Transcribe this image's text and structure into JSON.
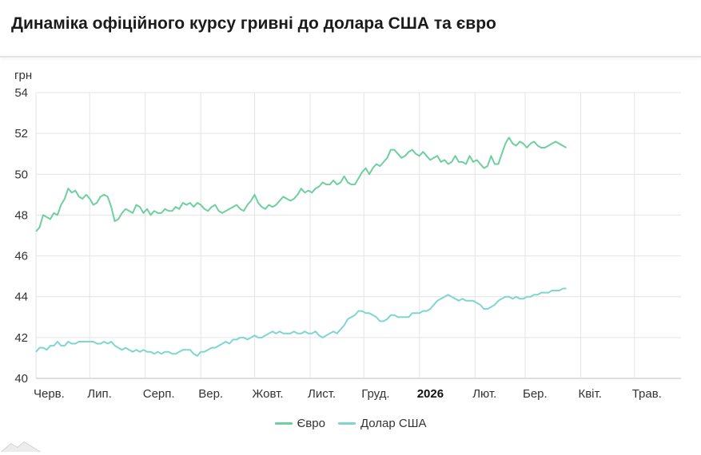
{
  "title": "Динаміка офіційного курсу гривні до долара США та євро",
  "chart_data": {
    "type": "line",
    "ylabel": "грн",
    "ylim": [
      40,
      54
    ],
    "yticks": [
      40,
      42,
      44,
      46,
      48,
      50,
      52,
      54
    ],
    "xlim": [
      0,
      360
    ],
    "xticks": [
      {
        "label": "Черв.",
        "x": 0,
        "bold": false
      },
      {
        "label": "Лип.",
        "x": 30,
        "bold": false
      },
      {
        "label": "Серп.",
        "x": 61,
        "bold": false
      },
      {
        "label": "Вер.",
        "x": 92,
        "bold": false
      },
      {
        "label": "Жовт.",
        "x": 122,
        "bold": false
      },
      {
        "label": "Лист.",
        "x": 153,
        "bold": false
      },
      {
        "label": "Груд.",
        "x": 183,
        "bold": false
      },
      {
        "label": "2026",
        "x": 214,
        "bold": true
      },
      {
        "label": "Лют.",
        "x": 245,
        "bold": false
      },
      {
        "label": "Бер.",
        "x": 273,
        "bold": false
      },
      {
        "label": "Квіт.",
        "x": 304,
        "bold": false
      },
      {
        "label": "Трав.",
        "x": 334,
        "bold": false
      }
    ],
    "grid": true,
    "legend_position": "bottom",
    "series": [
      {
        "name": "Євро",
        "color": "#6fcf9f",
        "points": [
          [
            0,
            47.2
          ],
          [
            2,
            47.4
          ],
          [
            4,
            48.0
          ],
          [
            6,
            47.9
          ],
          [
            8,
            47.8
          ],
          [
            10,
            48.1
          ],
          [
            12,
            48.0
          ],
          [
            14,
            48.5
          ],
          [
            16,
            48.8
          ],
          [
            18,
            49.3
          ],
          [
            20,
            49.1
          ],
          [
            22,
            49.2
          ],
          [
            24,
            48.9
          ],
          [
            26,
            48.8
          ],
          [
            28,
            49.0
          ],
          [
            30,
            48.8
          ],
          [
            32,
            48.5
          ],
          [
            34,
            48.6
          ],
          [
            36,
            48.9
          ],
          [
            38,
            49.0
          ],
          [
            40,
            48.9
          ],
          [
            42,
            48.4
          ],
          [
            44,
            47.7
          ],
          [
            46,
            47.8
          ],
          [
            48,
            48.1
          ],
          [
            50,
            48.3
          ],
          [
            52,
            48.2
          ],
          [
            54,
            48.1
          ],
          [
            56,
            48.5
          ],
          [
            58,
            48.4
          ],
          [
            60,
            48.1
          ],
          [
            62,
            48.3
          ],
          [
            64,
            48.0
          ],
          [
            66,
            48.2
          ],
          [
            68,
            48.1
          ],
          [
            70,
            48.1
          ],
          [
            72,
            48.3
          ],
          [
            74,
            48.2
          ],
          [
            76,
            48.2
          ],
          [
            78,
            48.4
          ],
          [
            80,
            48.3
          ],
          [
            82,
            48.6
          ],
          [
            84,
            48.5
          ],
          [
            86,
            48.6
          ],
          [
            88,
            48.4
          ],
          [
            90,
            48.6
          ],
          [
            92,
            48.5
          ],
          [
            94,
            48.3
          ],
          [
            96,
            48.2
          ],
          [
            98,
            48.4
          ],
          [
            100,
            48.5
          ],
          [
            102,
            48.2
          ],
          [
            104,
            48.1
          ],
          [
            106,
            48.2
          ],
          [
            108,
            48.3
          ],
          [
            110,
            48.4
          ],
          [
            112,
            48.5
          ],
          [
            114,
            48.3
          ],
          [
            116,
            48.2
          ],
          [
            118,
            48.5
          ],
          [
            120,
            48.7
          ],
          [
            122,
            49.0
          ],
          [
            124,
            48.6
          ],
          [
            126,
            48.4
          ],
          [
            128,
            48.3
          ],
          [
            130,
            48.5
          ],
          [
            132,
            48.4
          ],
          [
            134,
            48.5
          ],
          [
            136,
            48.7
          ],
          [
            138,
            48.9
          ],
          [
            140,
            48.8
          ],
          [
            142,
            48.7
          ],
          [
            144,
            48.8
          ],
          [
            146,
            49.0
          ],
          [
            148,
            49.3
          ],
          [
            150,
            49.1
          ],
          [
            152,
            49.2
          ],
          [
            154,
            49.1
          ],
          [
            156,
            49.3
          ],
          [
            158,
            49.4
          ],
          [
            160,
            49.6
          ],
          [
            162,
            49.5
          ],
          [
            164,
            49.5
          ],
          [
            166,
            49.7
          ],
          [
            168,
            49.5
          ],
          [
            170,
            49.6
          ],
          [
            172,
            49.9
          ],
          [
            174,
            49.6
          ],
          [
            176,
            49.5
          ],
          [
            178,
            49.5
          ],
          [
            180,
            49.8
          ],
          [
            182,
            50.1
          ],
          [
            184,
            50.3
          ],
          [
            186,
            50.0
          ],
          [
            188,
            50.3
          ],
          [
            190,
            50.5
          ],
          [
            192,
            50.4
          ],
          [
            194,
            50.6
          ],
          [
            196,
            50.8
          ],
          [
            198,
            51.2
          ],
          [
            200,
            51.2
          ],
          [
            202,
            51.0
          ],
          [
            204,
            50.8
          ],
          [
            206,
            50.9
          ],
          [
            208,
            51.1
          ],
          [
            210,
            51.2
          ],
          [
            212,
            51.0
          ],
          [
            214,
            50.9
          ],
          [
            216,
            51.1
          ],
          [
            218,
            50.9
          ],
          [
            220,
            50.7
          ],
          [
            222,
            50.8
          ],
          [
            224,
            50.9
          ],
          [
            226,
            50.6
          ],
          [
            228,
            50.7
          ],
          [
            230,
            50.5
          ],
          [
            232,
            50.6
          ],
          [
            234,
            50.9
          ],
          [
            236,
            50.6
          ],
          [
            238,
            50.6
          ],
          [
            240,
            50.5
          ],
          [
            242,
            50.9
          ],
          [
            244,
            50.6
          ],
          [
            246,
            50.7
          ],
          [
            248,
            50.5
          ],
          [
            250,
            50.3
          ],
          [
            252,
            50.4
          ],
          [
            254,
            50.9
          ],
          [
            256,
            50.5
          ],
          [
            258,
            50.5
          ],
          [
            260,
            51.0
          ],
          [
            262,
            51.5
          ],
          [
            264,
            51.8
          ],
          [
            266,
            51.5
          ],
          [
            268,
            51.4
          ],
          [
            270,
            51.6
          ],
          [
            272,
            51.5
          ],
          [
            274,
            51.3
          ],
          [
            276,
            51.5
          ],
          [
            278,
            51.6
          ],
          [
            280,
            51.4
          ],
          [
            282,
            51.3
          ],
          [
            284,
            51.3
          ],
          [
            286,
            51.4
          ],
          [
            288,
            51.5
          ],
          [
            290,
            51.6
          ],
          [
            292,
            51.5
          ],
          [
            294,
            51.4
          ],
          [
            296,
            51.3
          ]
        ]
      },
      {
        "name": "Долар США",
        "color": "#7fd6cf",
        "points": [
          [
            0,
            41.3
          ],
          [
            2,
            41.5
          ],
          [
            4,
            41.5
          ],
          [
            6,
            41.4
          ],
          [
            8,
            41.6
          ],
          [
            10,
            41.6
          ],
          [
            12,
            41.8
          ],
          [
            14,
            41.6
          ],
          [
            16,
            41.6
          ],
          [
            18,
            41.8
          ],
          [
            20,
            41.7
          ],
          [
            22,
            41.7
          ],
          [
            24,
            41.8
          ],
          [
            26,
            41.8
          ],
          [
            28,
            41.8
          ],
          [
            30,
            41.8
          ],
          [
            32,
            41.8
          ],
          [
            34,
            41.7
          ],
          [
            36,
            41.7
          ],
          [
            38,
            41.8
          ],
          [
            40,
            41.7
          ],
          [
            42,
            41.8
          ],
          [
            44,
            41.6
          ],
          [
            46,
            41.5
          ],
          [
            48,
            41.4
          ],
          [
            50,
            41.5
          ],
          [
            52,
            41.4
          ],
          [
            54,
            41.3
          ],
          [
            56,
            41.4
          ],
          [
            58,
            41.3
          ],
          [
            60,
            41.4
          ],
          [
            62,
            41.3
          ],
          [
            64,
            41.3
          ],
          [
            66,
            41.2
          ],
          [
            68,
            41.3
          ],
          [
            70,
            41.2
          ],
          [
            72,
            41.3
          ],
          [
            74,
            41.3
          ],
          [
            76,
            41.2
          ],
          [
            78,
            41.2
          ],
          [
            80,
            41.3
          ],
          [
            82,
            41.4
          ],
          [
            84,
            41.4
          ],
          [
            86,
            41.4
          ],
          [
            88,
            41.2
          ],
          [
            90,
            41.1
          ],
          [
            92,
            41.3
          ],
          [
            94,
            41.3
          ],
          [
            96,
            41.4
          ],
          [
            98,
            41.5
          ],
          [
            100,
            41.5
          ],
          [
            102,
            41.6
          ],
          [
            104,
            41.7
          ],
          [
            106,
            41.8
          ],
          [
            108,
            41.7
          ],
          [
            110,
            41.9
          ],
          [
            112,
            41.9
          ],
          [
            114,
            42.0
          ],
          [
            116,
            42.0
          ],
          [
            118,
            41.9
          ],
          [
            120,
            42.0
          ],
          [
            122,
            42.1
          ],
          [
            124,
            42.0
          ],
          [
            126,
            42.0
          ],
          [
            128,
            42.1
          ],
          [
            130,
            42.2
          ],
          [
            132,
            42.3
          ],
          [
            134,
            42.2
          ],
          [
            136,
            42.3
          ],
          [
            138,
            42.2
          ],
          [
            140,
            42.2
          ],
          [
            142,
            42.2
          ],
          [
            144,
            42.3
          ],
          [
            146,
            42.2
          ],
          [
            148,
            42.2
          ],
          [
            150,
            42.3
          ],
          [
            152,
            42.2
          ],
          [
            154,
            42.2
          ],
          [
            156,
            42.3
          ],
          [
            158,
            42.1
          ],
          [
            160,
            42.0
          ],
          [
            162,
            42.1
          ],
          [
            164,
            42.2
          ],
          [
            166,
            42.3
          ],
          [
            168,
            42.2
          ],
          [
            170,
            42.4
          ],
          [
            172,
            42.6
          ],
          [
            174,
            42.9
          ],
          [
            176,
            43.0
          ],
          [
            178,
            43.1
          ],
          [
            180,
            43.3
          ],
          [
            182,
            43.3
          ],
          [
            184,
            43.2
          ],
          [
            186,
            43.2
          ],
          [
            188,
            43.1
          ],
          [
            190,
            43.0
          ],
          [
            192,
            42.8
          ],
          [
            194,
            42.8
          ],
          [
            196,
            42.9
          ],
          [
            198,
            43.1
          ],
          [
            200,
            43.1
          ],
          [
            202,
            43.0
          ],
          [
            204,
            43.0
          ],
          [
            206,
            43.0
          ],
          [
            208,
            43.0
          ],
          [
            210,
            43.2
          ],
          [
            212,
            43.2
          ],
          [
            214,
            43.2
          ],
          [
            216,
            43.3
          ],
          [
            218,
            43.3
          ],
          [
            220,
            43.4
          ],
          [
            222,
            43.6
          ],
          [
            224,
            43.8
          ],
          [
            226,
            43.9
          ],
          [
            228,
            44.0
          ],
          [
            230,
            44.1
          ],
          [
            232,
            44.0
          ],
          [
            234,
            43.9
          ],
          [
            236,
            43.8
          ],
          [
            238,
            43.9
          ],
          [
            240,
            43.8
          ],
          [
            242,
            43.8
          ],
          [
            244,
            43.8
          ],
          [
            246,
            43.7
          ],
          [
            248,
            43.6
          ],
          [
            250,
            43.4
          ],
          [
            252,
            43.4
          ],
          [
            254,
            43.5
          ],
          [
            256,
            43.6
          ],
          [
            258,
            43.8
          ],
          [
            260,
            43.9
          ],
          [
            262,
            44.0
          ],
          [
            264,
            44.0
          ],
          [
            266,
            43.9
          ],
          [
            268,
            44.0
          ],
          [
            270,
            43.9
          ],
          [
            272,
            43.9
          ],
          [
            274,
            44.0
          ],
          [
            276,
            44.0
          ],
          [
            278,
            44.1
          ],
          [
            280,
            44.1
          ],
          [
            282,
            44.2
          ],
          [
            284,
            44.2
          ],
          [
            286,
            44.2
          ],
          [
            288,
            44.3
          ],
          [
            290,
            44.3
          ],
          [
            292,
            44.3
          ],
          [
            294,
            44.4
          ],
          [
            296,
            44.4
          ]
        ]
      }
    ]
  }
}
